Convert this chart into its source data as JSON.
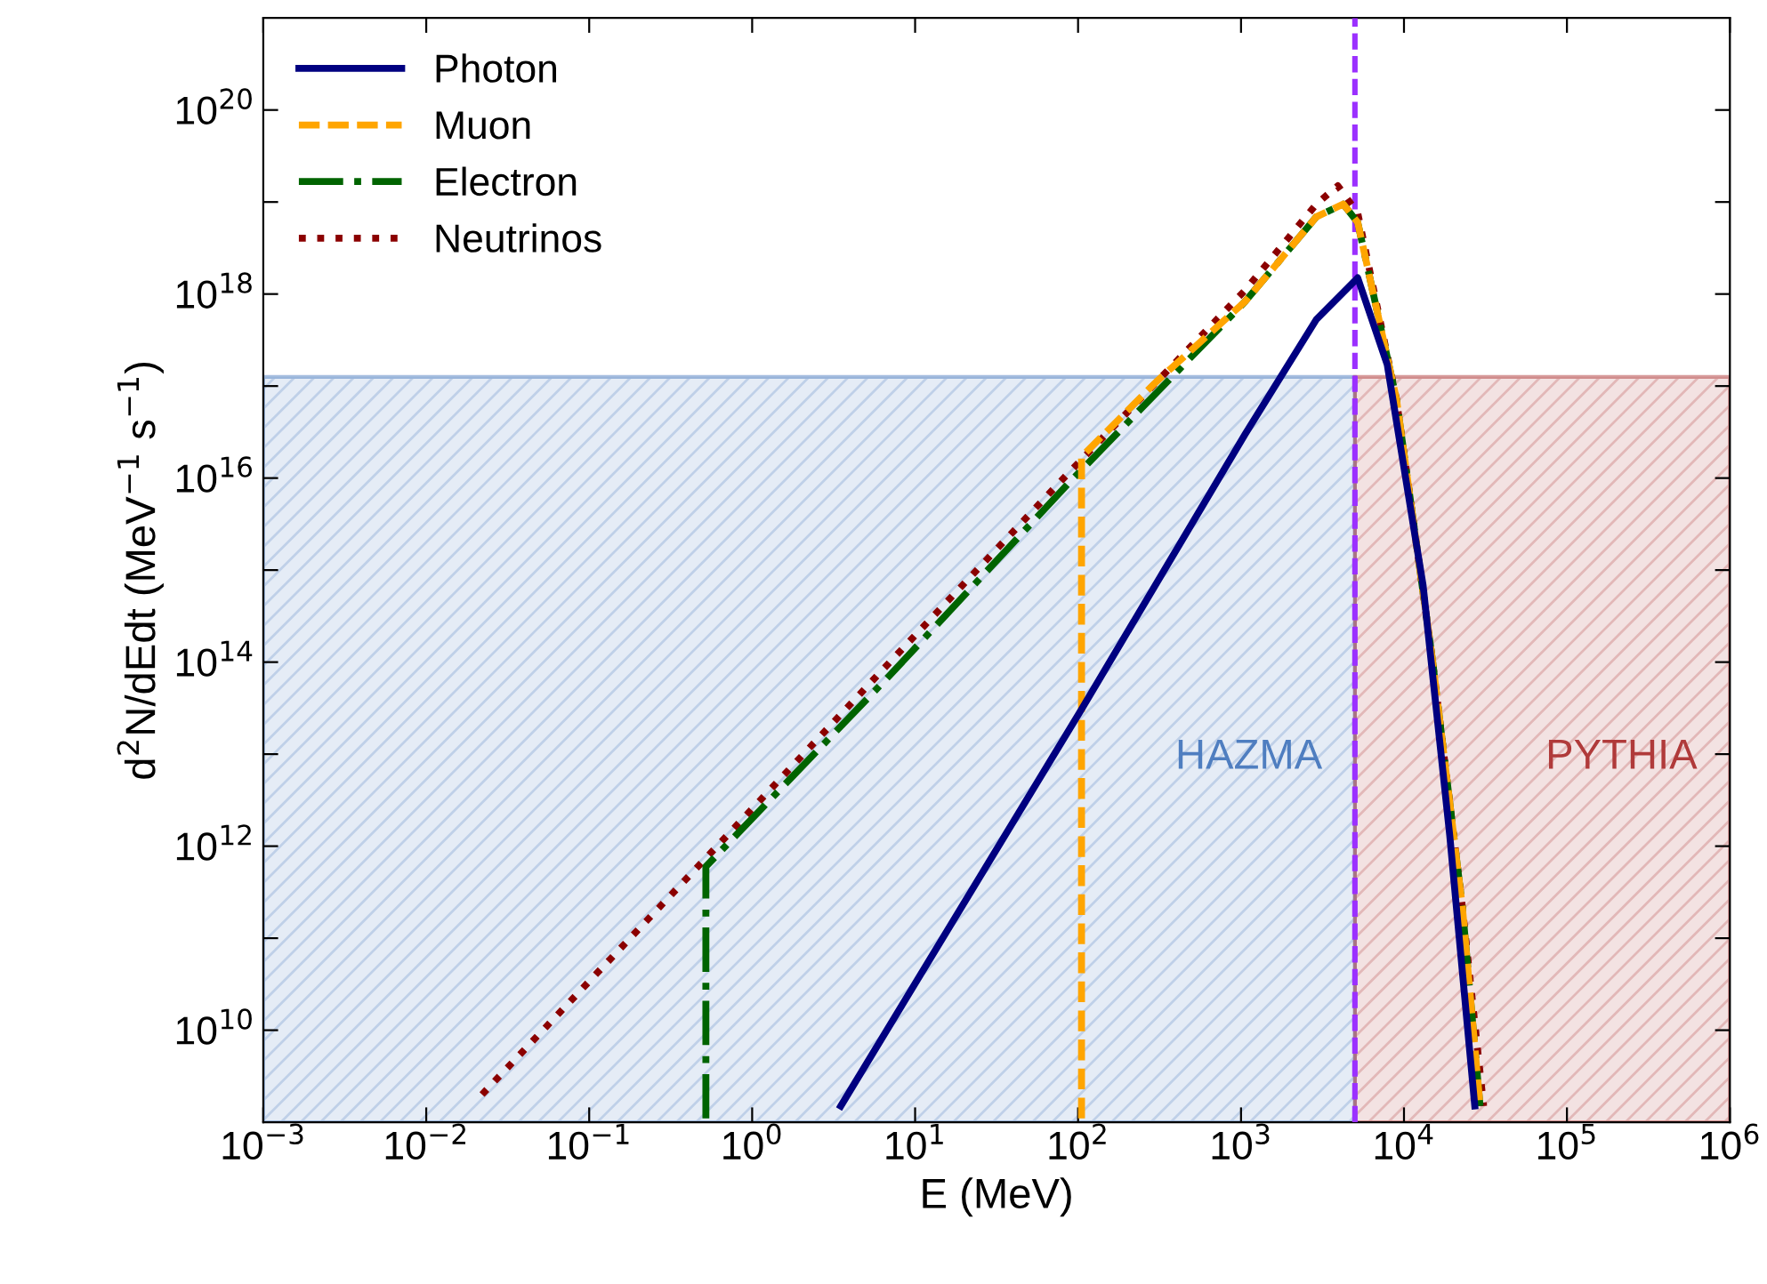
{
  "chart_data": {
    "type": "line",
    "xlabel": "E (MeV)",
    "ylabel": "d$^{2}$N/dEdt (MeV$^{−1}$ s$^{−1}$)",
    "log": "xy",
    "grid": false,
    "legend": "top left",
    "xlim": [
      0.001,
      1000000
    ],
    "ylim": [
      1000000000,
      1e+21
    ],
    "xticks": [
      {
        "value": 0.001,
        "label": "10$^{−3}$"
      },
      {
        "value": 0.01,
        "label": "10$^{−2}$"
      },
      {
        "value": 0.1,
        "label": "10$^{−1}$"
      },
      {
        "value": 1,
        "label": "10$^{0}$"
      },
      {
        "value": 10,
        "label": "10$^{1}$"
      },
      {
        "value": 100,
        "label": "10$^{2}$"
      },
      {
        "value": 1000,
        "label": "10$^{3}$"
      },
      {
        "value": 10000,
        "label": "10$^{4}$"
      },
      {
        "value": 100000,
        "label": "10$^{5}$"
      },
      {
        "value": 1000000,
        "label": "10$^{6}$"
      }
    ],
    "yticks": [
      {
        "value": 10000000000.0,
        "label": "10$^{10}$"
      },
      {
        "value": 100000000000.0,
        "label": null
      },
      {
        "value": 1000000000000.0,
        "label": "10$^{12}$"
      },
      {
        "value": 10000000000000.0,
        "label": null
      },
      {
        "value": 100000000000000.0,
        "label": "10$^{14}$"
      },
      {
        "value": 1000000000000000.0,
        "label": null
      },
      {
        "value": 1e+16,
        "label": "10$^{16}$"
      },
      {
        "value": 1e+17,
        "label": null
      },
      {
        "value": 1e+18,
        "label": "10$^{18}$"
      },
      {
        "value": 1e+19,
        "label": null
      },
      {
        "value": 1e+20,
        "label": "10$^{20}$"
      }
    ],
    "series": [
      {
        "name": "Photon",
        "color": "#000080",
        "line_style": "solid",
        "x": [
          3.5,
          103,
          1060,
          2900,
          5200,
          7900,
          13100,
          19100,
          27200
        ],
        "values": [
          1500000000.0,
          29000000000000.0,
          3e+16,
          5.3e+17,
          1.5e+18,
          1.7e+17,
          680000000000000.0,
          1300000000000.0,
          1500000000.0
        ]
      },
      {
        "name": "Muon",
        "color": "#ffa500",
        "line_style": "dashed",
        "x": [
          105,
          105,
          300,
          1060,
          2900,
          4240,
          5200,
          9000,
          14900,
          22800,
          29300
        ],
        "values": [
          1100000000.0,
          1.7e+16,
          1.1e+17,
          8.3e+17,
          6.9e+18,
          9.5e+18,
          6e+18,
          7.1e+16,
          110000000000000.0,
          220000000000.0,
          1500000000.0
        ]
      },
      {
        "name": "Electron",
        "color": "#006400",
        "line_style": "dashdot",
        "x": [
          0.52,
          0.52,
          7,
          86,
          1060,
          2900,
          4240,
          5200,
          9000,
          14900,
          22800,
          29300
        ],
        "values": [
          1100000000.0,
          600000000000.0,
          72000000000000.0,
          8500000000000000.0,
          8.3e+17,
          6.9e+18,
          9.5e+18,
          6e+18,
          7.1e+16,
          110000000000000.0,
          220000000000.0,
          1500000000.0
        ]
      },
      {
        "name": "Neutrinos",
        "color": "#8b0000",
        "line_style": "dotted",
        "x": [
          0.022,
          0.52,
          7,
          86,
          1060,
          2900,
          3930,
          5200,
          9000,
          14900,
          22800,
          30800
        ],
        "values": [
          2000000000.0,
          740000000000.0,
          100000000000000.0,
          1.1e+16,
          1.1e+18,
          9.5e+18,
          1.5e+19,
          7.6e+18,
          7.1e+16,
          110000000000000.0,
          220000000000.0,
          1500000000.0
        ]
      }
    ],
    "ref_lines": [
      {
        "axis": "x",
        "value": 5000,
        "color": "#9b30ff",
        "line_style": "dashed"
      }
    ],
    "bands": [
      {
        "axis": "x",
        "from": 0.001,
        "to": 5000,
        "label": "HAZMA",
        "color": "#4f7ec0"
      },
      {
        "axis": "x",
        "from": 5000,
        "to": 1000000,
        "label": "PYTHIA",
        "color": "#b03a3a"
      }
    ]
  }
}
